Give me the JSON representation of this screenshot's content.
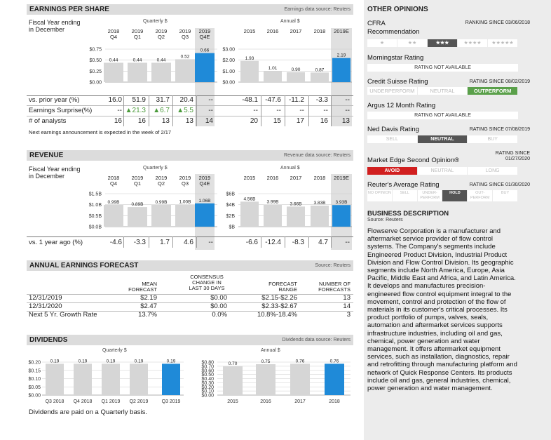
{
  "eps": {
    "title": "EARNINGS PER SHARE",
    "source": "Earnings data source: Reuters",
    "fy_label_1": "Fiscal Year ending",
    "fy_label_2": "in December",
    "quarterly_label": "Quarterly $",
    "annual_label": "Annual $",
    "q_headers": [
      [
        "2018",
        "Q4"
      ],
      [
        "2019",
        "Q1"
      ],
      [
        "2019",
        "Q2"
      ],
      [
        "2019",
        "Q3"
      ],
      [
        "2019",
        "Q4E"
      ]
    ],
    "a_headers": [
      "2015",
      "2016",
      "2017",
      "2018",
      "2019E"
    ],
    "q_axis": [
      "$0.75",
      "$0.50",
      "$0.25",
      "$0.00"
    ],
    "a_axis": [
      "$3.00",
      "$2.00",
      "$1.00",
      "$0.00"
    ],
    "vs_prior_label": "vs. prior year (%)",
    "vs_prior_q": [
      "16.0",
      "51.9",
      "31.7",
      "20.4",
      "--"
    ],
    "vs_prior_a": [
      "-48.1",
      "-47.6",
      "-11.2",
      "-3.3",
      "--"
    ],
    "surprise_label": "Earnings Surprise(%)",
    "surprise_q": [
      "--",
      "▲21.3",
      "▲6.7",
      "▲5.5",
      "--"
    ],
    "surprise_a": [
      "--",
      "--",
      "--",
      "--",
      "--"
    ],
    "analysts_label": "# of analysts",
    "analysts_q": [
      "16",
      "16",
      "13",
      "13",
      "14"
    ],
    "analysts_a": [
      "20",
      "15",
      "17",
      "16",
      "13"
    ],
    "note": "Next earnings announcement is expected in the week of 2/17"
  },
  "revenue": {
    "title": "REVENUE",
    "source": "Revenue data source: Reuters",
    "q_axis": [
      "$1.5B",
      "$1.0B",
      "$0.5B",
      "$0.0B"
    ],
    "a_axis": [
      "$6B",
      "$4B",
      "$2B",
      "$B"
    ],
    "vs_label": "vs. 1 year ago (%)",
    "vs_q": [
      "-4.6",
      "-3.3",
      "1.7",
      "4.6",
      "--"
    ],
    "vs_a": [
      "-6.6",
      "-12.4",
      "-8.3",
      "4.7",
      "--"
    ]
  },
  "forecast": {
    "title": "ANNUAL EARNINGS FORECAST",
    "source": "Source: Reuters",
    "col_mean": [
      "MEAN",
      "FORECAST"
    ],
    "col_consensus": [
      "CONSENSUS",
      "CHANGE IN",
      "LAST 30 DAYS"
    ],
    "col_range": [
      "FORECAST",
      "RANGE"
    ],
    "col_num": [
      "NUMBER OF",
      "FORECASTS"
    ],
    "rows": [
      {
        "label": "12/31/2019",
        "mean": "$2.19",
        "change": "$0.00",
        "range": "$2.15-$2.26",
        "num": "13"
      },
      {
        "label": "12/31/2020",
        "mean": "$2.47",
        "change": "$0.00",
        "range": "$2.33-$2.67",
        "num": "14"
      },
      {
        "label": "Next 5 Yr. Growth Rate",
        "mean": "13.7%",
        "change": "0.0%",
        "range": "10.8%-18.4%",
        "num": "3"
      }
    ]
  },
  "dividends": {
    "title": "DIVIDENDS",
    "source": "Dividends data source: Reuters",
    "quarterly_label": "Quarterly $",
    "annual_label": "Annual $",
    "q_axis": [
      "$0.20",
      "$0.15",
      "$0.10",
      "$0.05",
      "$0.00"
    ],
    "a_axis": [
      "$0.80",
      "$0.70",
      "$0.60",
      "$0.50",
      "$0.40",
      "$0.30",
      "$0.20",
      "$0.10",
      "$0.00"
    ],
    "note": "Dividends are paid on a Quarterly  basis."
  },
  "opinions": {
    "title": "OTHER OPINIONS",
    "cfra_1": "CFRA",
    "cfra_2": "Recommendation",
    "cfra_since": "RANKING SINCE 03/06/2018",
    "cfra_stars": [
      "★",
      "★★",
      "★★★",
      "★★★★",
      "★★★★★"
    ],
    "morningstar": "Morningstar Rating",
    "not_available": "RATING NOT AVAILABLE",
    "credit_suisse": "Credit Suisse Rating",
    "cs_since": "RATING SINCE 08/02/2019",
    "cs_scale": [
      "UNDERPERFORM",
      "NEUTRAL",
      "OUTPERFORM"
    ],
    "argus": "Argus 12 Month Rating",
    "ned_davis": "Ned Davis Rating",
    "nd_since": "RATING SINCE 07/08/2019",
    "nd_scale": [
      "SELL",
      "NEUTRAL",
      "BUY"
    ],
    "market_edge": "Market Edge Second Opinion®",
    "me_since_1": "RATING SINCE",
    "me_since_2": "01/27/2020",
    "me_scale": [
      "AVOID",
      "NEUTRAL",
      "LONG"
    ],
    "reuters": "Reuter's Average Rating",
    "reuters_since": "RATING SINCE 01/30/2020",
    "reuters_scale": [
      "NO OPINION",
      "SELL",
      "UNDER-PERFORM",
      "HOLD",
      "OUT-PERFORM",
      "BUY"
    ]
  },
  "business": {
    "title": "BUSINESS DESCRIPTION",
    "source": "Source: Reuters",
    "text": "Flowserve Corporation is a manufacturer and aftermarket service provider of flow control systems. The Company's segments include Engineered Product Division, Industrial Product Division and Flow Control Division. Its geographic segments include North America, Europe, Asia Pacific, Middle East and Africa, and Latin America. It develops and manufactures precision-engineered flow control equipment integral to the movement, control and protection of the flow of materials in its customer's critical processes. Its product portfolio of pumps, valves, seals, automation and aftermarket services supports infrastructure industries, including oil and gas, chemical, power generation and water management. It offers aftermarket equipment services, such as installation, diagnostics, repair and retrofitting through manufacturing platform and network of Quick Response Centers. Its products include oil and gas, general industries, chemical, power generation and water management."
  },
  "colors": {
    "bar": "#d6d6d6",
    "estimate_bar": "#1f8ad8",
    "highlight": "#e0e0e0"
  },
  "chart_data": [
    {
      "type": "bar",
      "title": "Quarterly $",
      "categories": [
        "2018 Q4",
        "2019 Q1",
        "2019 Q2",
        "2019 Q3",
        "2019 Q4E"
      ],
      "values": [
        0.44,
        0.44,
        0.44,
        0.52,
        0.66
      ],
      "labels": [
        "0.44",
        "0.44",
        "0.44",
        "0.52",
        "0.66"
      ],
      "ylim": [
        0,
        0.75
      ]
    },
    {
      "type": "bar",
      "title": "Annual $",
      "categories": [
        "2015",
        "2016",
        "2017",
        "2018",
        "2019E"
      ],
      "values": [
        1.93,
        1.01,
        0.9,
        0.87,
        2.19
      ],
      "labels": [
        "1.93",
        "1.01",
        "0.90",
        "0.87",
        "2.19"
      ],
      "ylim": [
        0,
        3.0
      ]
    },
    {
      "type": "bar",
      "categories": [
        "2018 Q4",
        "2019 Q1",
        "2019 Q2",
        "2019 Q3",
        "2019 Q4E"
      ],
      "values": [
        0.99,
        0.89,
        0.99,
        1.0,
        1.06
      ],
      "labels": [
        "0.99B",
        "0.89B",
        "0.99B",
        "1.00B",
        "1.06B"
      ],
      "ylim": [
        0,
        1.5
      ]
    },
    {
      "type": "bar",
      "categories": [
        "2015",
        "2016",
        "2017",
        "2018",
        "2019E"
      ],
      "values": [
        4.56,
        3.99,
        3.66,
        3.83,
        3.93
      ],
      "labels": [
        "4.56B",
        "3.99B",
        "3.66B",
        "3.83B",
        "3.93B"
      ],
      "ylim": [
        0,
        6
      ]
    },
    {
      "type": "bar",
      "title": "Quarterly $",
      "categories": [
        "Q3 2018",
        "Q4 2018",
        "Q1 2019",
        "Q2 2019",
        "Q3 2019"
      ],
      "values": [
        0.19,
        0.19,
        0.19,
        0.19,
        0.19
      ],
      "labels": [
        "0.19",
        "0.19",
        "0.19",
        "0.19",
        "0.19"
      ],
      "ylim": [
        0,
        0.2
      ]
    },
    {
      "type": "bar",
      "title": "Annual $",
      "categories": [
        "2015",
        "2016",
        "2017",
        "2018"
      ],
      "values": [
        0.7,
        0.75,
        0.76,
        0.76
      ],
      "labels": [
        "0.70",
        "0.75",
        "0.76",
        "0.76"
      ],
      "ylim": [
        0,
        0.8
      ]
    }
  ]
}
